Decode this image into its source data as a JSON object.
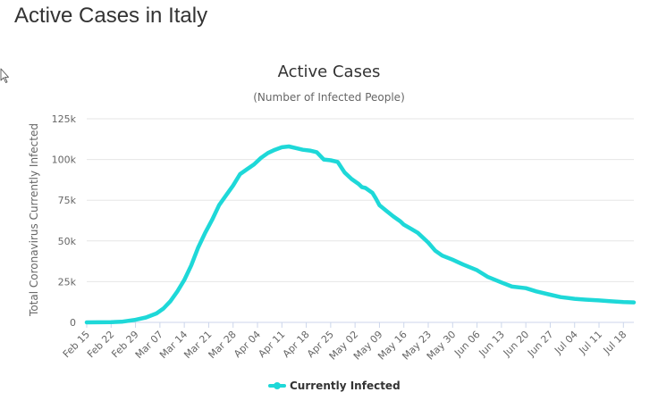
{
  "page": {
    "title": "Active Cases in Italy"
  },
  "colors": {
    "series": "#1ed8d8",
    "grid": "#e6e6e6",
    "axis": "#ccd6eb"
  },
  "chart_data": {
    "type": "line",
    "title": "Active Cases",
    "subtitle": "(Number of Infected People)",
    "xlabel": "",
    "ylabel": "Total Coronavirus Currently Infected",
    "ylim": [
      0,
      125000
    ],
    "y_ticks": [
      0,
      25000,
      50000,
      75000,
      100000,
      125000
    ],
    "y_tick_labels": [
      "0",
      "25k",
      "50k",
      "75k",
      "100k",
      "125k"
    ],
    "x_ticks": [
      0,
      7,
      14,
      21,
      28,
      35,
      42,
      49,
      56,
      63,
      70,
      77,
      84,
      91,
      98,
      105,
      112,
      119,
      126,
      133,
      140,
      147,
      154
    ],
    "x_tick_labels": [
      "Feb 15",
      "Feb 22",
      "Feb 29",
      "Mar 07",
      "Mar 14",
      "Mar 21",
      "Mar 28",
      "Apr 04",
      "Apr 11",
      "Apr 18",
      "Apr 25",
      "May 02",
      "May 09",
      "May 16",
      "May 23",
      "May 30",
      "Jun 06",
      "Jun 13",
      "Jun 20",
      "Jun 27",
      "Jul 04",
      "Jul 11",
      "Jul 18"
    ],
    "x_range": [
      0,
      157
    ],
    "legend": "bottom-center",
    "series": [
      {
        "name": "Currently Infected",
        "x": [
          0,
          7,
          10,
          14,
          17,
          20,
          22,
          24,
          26,
          28,
          30,
          32,
          34,
          36,
          38,
          40,
          42,
          44,
          46,
          48,
          50,
          52,
          54,
          56,
          58,
          60,
          62,
          64,
          66,
          68,
          70,
          72,
          74,
          76,
          78,
          79,
          80,
          82,
          83,
          84,
          86,
          88,
          90,
          91,
          93,
          95,
          98,
          100,
          102,
          105,
          108,
          112,
          115,
          119,
          122,
          126,
          129,
          133,
          136,
          140,
          143,
          147,
          150,
          154,
          157
        ],
        "values": [
          0,
          100,
          400,
          1600,
          3000,
          5500,
          8500,
          13000,
          19000,
          26000,
          35000,
          46000,
          55000,
          63000,
          72000,
          78000,
          84000,
          91000,
          94000,
          97000,
          101000,
          104000,
          106000,
          107500,
          108000,
          107000,
          106000,
          105500,
          104500,
          100000,
          99500,
          98500,
          92000,
          88000,
          85000,
          83000,
          82500,
          79500,
          76000,
          72000,
          68500,
          65000,
          62000,
          60000,
          57500,
          55000,
          49000,
          44000,
          41000,
          38500,
          35500,
          32000,
          28000,
          24500,
          22000,
          21000,
          19000,
          17000,
          15500,
          14500,
          14000,
          13500,
          13000,
          12500,
          12300
        ]
      }
    ]
  }
}
